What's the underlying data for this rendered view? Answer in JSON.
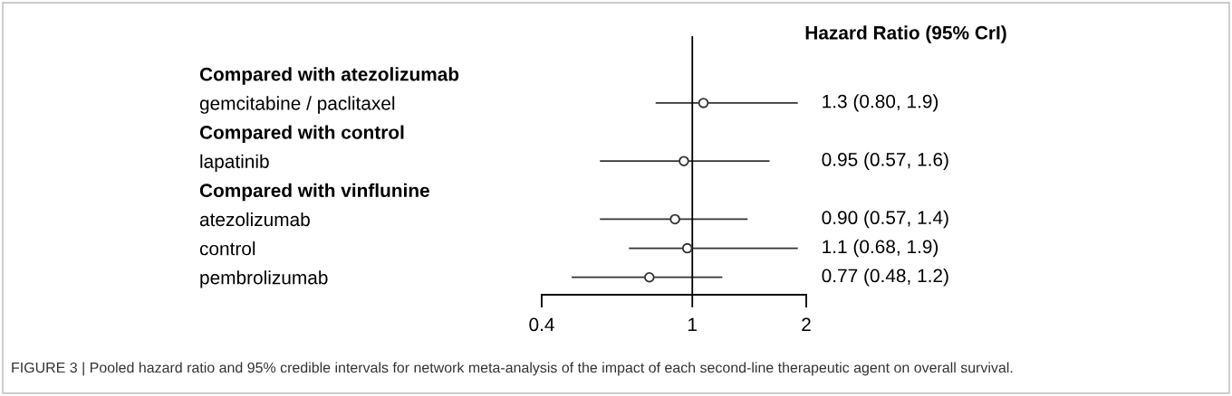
{
  "chart_data": {
    "type": "scatter",
    "orientation": "horizontal",
    "categories": [
      "Compared with atezolizumab",
      "gemcitabine / paclitaxel",
      "Compared with control",
      "lapatinib",
      "Compared with vinflunine",
      "atezolizumab",
      "control",
      "pembrolizumab"
    ],
    "values": [
      null,
      1.07,
      null,
      0.95,
      null,
      0.9,
      0.97,
      0.77
    ],
    "errors": [
      null,
      [
        0.8,
        1.9
      ],
      null,
      [
        0.57,
        1.6
      ],
      null,
      [
        0.57,
        1.4
      ],
      [
        0.68,
        1.9
      ],
      [
        0.48,
        1.2
      ]
    ],
    "color": "#333333",
    "marker": "circle",
    "log": "x",
    "xlim": [
      0.4,
      2
    ],
    "xticks": [
      0.4,
      1,
      2
    ],
    "ref_lines": [
      {
        "axis": "x",
        "value": 1,
        "color": "#000000"
      }
    ],
    "annotations": [
      "Hazard Ratio (95% CrI)",
      "1.3 (0.80, 1.9)",
      "0.95 (0.57, 1.6)",
      "0.90 (0.57, 1.4)",
      "1.1 (0.68, 1.9)",
      "0.77 (0.48, 1.2)",
      "FIGURE 3 | Pooled hazard ratio and 95% credible intervals for network meta-analysis of the impact of each second-line therapeutic agent on overall survival."
    ]
  }
}
